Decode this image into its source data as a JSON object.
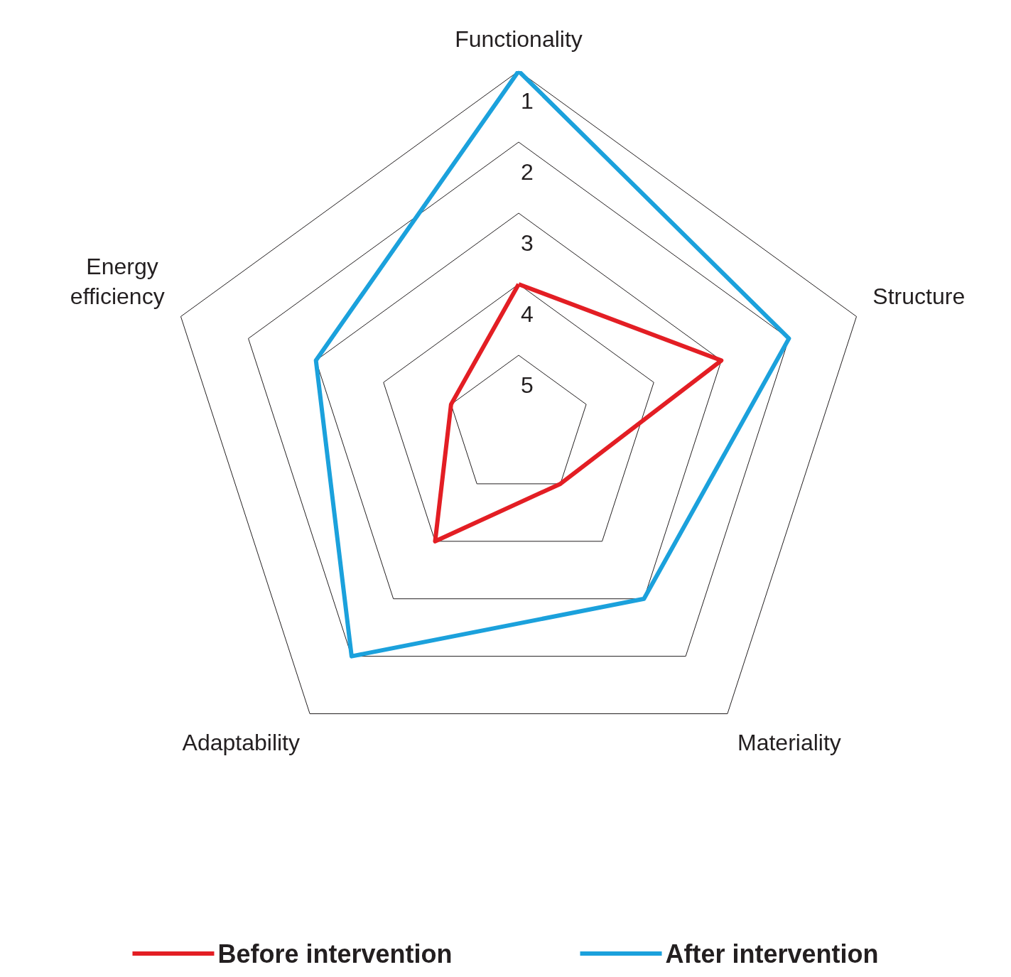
{
  "chart_data": {
    "type": "radar",
    "categories": [
      "Functionality",
      "Structure",
      "Materiality",
      "Adaptability",
      "Energy efficiency"
    ],
    "series": [
      {
        "name": "Before intervention",
        "color": "#e31e24",
        "values": [
          4,
          3,
          5,
          4,
          5
        ]
      },
      {
        "name": "After intervention",
        "color": "#1ba1dc",
        "values": [
          1,
          2,
          3,
          2,
          3
        ]
      }
    ],
    "ylim": [
      6,
      1
    ],
    "yticks": [
      1,
      2,
      3,
      4,
      5
    ],
    "grid": true,
    "legend": "bottom",
    "marker": "none",
    "line_style": "solid"
  }
}
